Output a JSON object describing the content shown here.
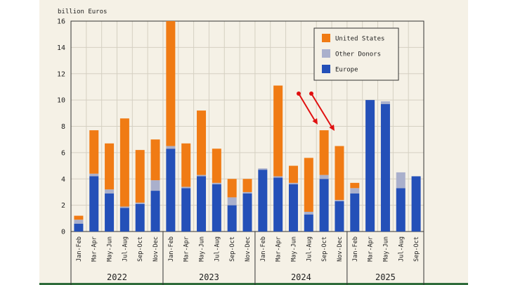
{
  "chart_data": {
    "type": "bar",
    "stacked": true,
    "ylabel": "billion Euros",
    "ylim": [
      0,
      16
    ],
    "yticks": [
      0,
      2,
      4,
      6,
      8,
      10,
      12,
      14,
      16
    ],
    "grid": true,
    "legend_position": "top-right",
    "series": [
      {
        "name": "Europe",
        "color": "#2450b8",
        "values": [
          0.6,
          4.2,
          2.9,
          1.8,
          2.1,
          3.1,
          6.3,
          3.3,
          4.2,
          3.6,
          2.0,
          2.9,
          4.7,
          4.1,
          3.6,
          1.3,
          4.0,
          2.3,
          2.9,
          10.0,
          9.7,
          3.3,
          4.2
        ]
      },
      {
        "name": "Other Donors",
        "color": "#aab0cc",
        "values": [
          0.3,
          0.2,
          0.3,
          0.1,
          0.1,
          0.8,
          0.2,
          0.1,
          0.1,
          0.1,
          0.6,
          0.1,
          0.1,
          0.1,
          0.1,
          0.2,
          0.3,
          0.1,
          0.4,
          0.0,
          0.2,
          1.2,
          0.0
        ]
      },
      {
        "name": "United States",
        "color": "#f07b14",
        "values": [
          0.3,
          3.3,
          3.5,
          6.7,
          4.0,
          3.1,
          9.5,
          3.3,
          4.9,
          2.6,
          1.4,
          1.0,
          0.0,
          6.9,
          1.3,
          4.1,
          3.4,
          4.1,
          0.4,
          0.0,
          0.0,
          0.0,
          0.0
        ]
      }
    ],
    "legend_order": [
      "United States",
      "Other Donors",
      "Europe"
    ],
    "categories": [
      "Jan-Feb",
      "Mar-Apr",
      "May-Jun",
      "Jul-Aug",
      "Sep-Oct",
      "Nov-Dec",
      "Jan-Feb",
      "Mar-Apr",
      "May-Jun",
      "Jul-Aug",
      "Sep-Oct",
      "Nov-Dec",
      "Jan-Feb",
      "Mar-Apr",
      "May-Jun",
      "Jul-Aug",
      "Sep-Oct",
      "Nov-Dec",
      "Jan-Feb",
      "Mar-Apr",
      "May-Jun",
      "Jul-Aug",
      "Sep-Oct"
    ],
    "years": [
      {
        "label": "2022",
        "start": 0,
        "end": 5
      },
      {
        "label": "2023",
        "start": 6,
        "end": 11
      },
      {
        "label": "2024",
        "start": 12,
        "end": 17
      },
      {
        "label": "2025",
        "start": 18,
        "end": 22
      }
    ],
    "annotation_arrows_color": "#e01010"
  }
}
